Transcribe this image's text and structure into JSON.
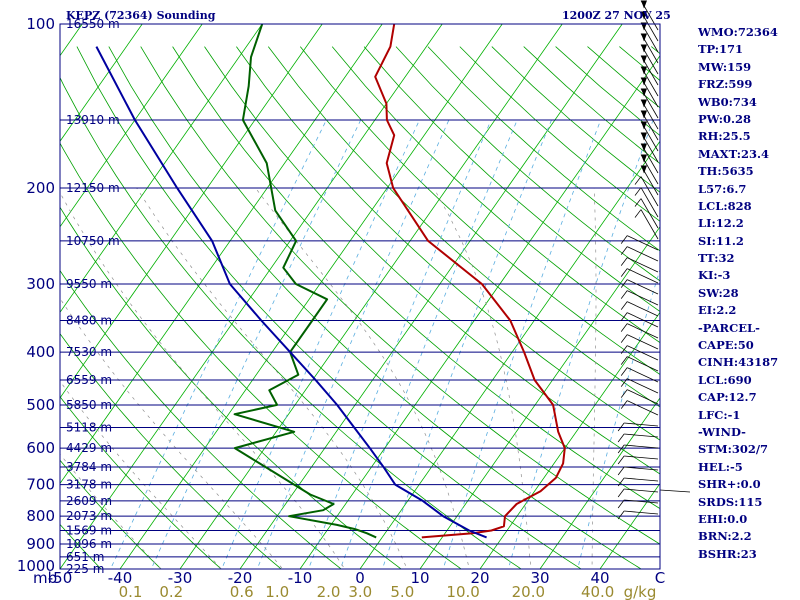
{
  "header": {
    "station": "KEPZ (72364) Sounding",
    "time": "1200Z 27 NOV 25"
  },
  "indices": [
    "WMO:72364",
    "TP:171",
    "MW:159",
    "FRZ:599",
    "WB0:734",
    "PW:0.28",
    "RH:25.5",
    "MAXT:23.4",
    "TH:5635",
    "L57:6.7",
    "LCL:828",
    "LI:12.2",
    "SI:11.2",
    "TT:32",
    "KI:-3",
    "SW:28",
    "EI:2.2",
    "-PARCEL-",
    "CAPE:50",
    "CINH:43187",
    "LCL:690",
    "CAP:12.7",
    "LFC:-1",
    "-WIND-",
    "STM:302/7",
    "HEL:-5",
    "SHR+:0.0",
    "SRDS:115",
    "EHI:0.0",
    "BRN:2.2",
    "BSHR:23"
  ],
  "chart_data": {
    "type": "line",
    "title": "KEPZ (72364) Sounding",
    "x_axis": {
      "unit_label": "C",
      "range": [
        -50,
        50
      ],
      "ticks": [
        "-50",
        "-40",
        "-30",
        "-20",
        "-10",
        "0",
        "10",
        "20",
        "30",
        "40",
        "C"
      ]
    },
    "y_axis": {
      "unit_label": "mb",
      "scale": "log",
      "range": [
        1000,
        100
      ],
      "ticks": [
        "100",
        "200",
        "300",
        "400",
        "500",
        "600",
        "700",
        "800",
        "900",
        "1000"
      ]
    },
    "height_labels": [
      {
        "p": 100,
        "label": "16550 m"
      },
      {
        "p": 150,
        "label": "13910 m"
      },
      {
        "p": 200,
        "label": "12150 m"
      },
      {
        "p": 250,
        "label": "10750 m"
      },
      {
        "p": 300,
        "label": "9550 m"
      },
      {
        "p": 350,
        "label": "8480 m"
      },
      {
        "p": 400,
        "label": "7530 m"
      },
      {
        "p": 450,
        "label": "6559 m"
      },
      {
        "p": 500,
        "label": "5850 m"
      },
      {
        "p": 550,
        "label": "5118 m"
      },
      {
        "p": 600,
        "label": "4429 m"
      },
      {
        "p": 650,
        "label": "3784 m"
      },
      {
        "p": 700,
        "label": "3178 m"
      },
      {
        "p": 750,
        "label": "2609 m"
      },
      {
        "p": 800,
        "label": "2073 m"
      },
      {
        "p": 850,
        "label": "1569 m"
      },
      {
        "p": 900,
        "label": "1096 m"
      },
      {
        "p": 950,
        "label": "651 m"
      },
      {
        "p": 1000,
        "label": "225 m"
      }
    ],
    "mixing_ratio_labels": {
      "unit_label": "g/kg",
      "ticks": [
        "0.1",
        "0.2",
        "0.6",
        "1.0",
        "2.0",
        "3.0",
        "5.0",
        "10.0",
        "20.0",
        "40.0"
      ]
    },
    "series": [
      {
        "color": "#b00000",
        "points": [
          [
            875,
            6.6
          ],
          [
            860,
            14.6
          ],
          [
            850,
            17.4
          ],
          [
            835,
            19.0
          ],
          [
            800,
            18.0
          ],
          [
            760,
            18.5
          ],
          [
            720,
            21.0
          ],
          [
            680,
            22.0
          ],
          [
            640,
            21.5
          ],
          [
            600,
            20.0
          ],
          [
            560,
            17.0
          ],
          [
            500,
            13.0
          ],
          [
            450,
            7.0
          ],
          [
            400,
            2.0
          ],
          [
            350,
            -4.0
          ],
          [
            300,
            -13.0
          ],
          [
            250,
            -27.0
          ],
          [
            200,
            -39.0
          ],
          [
            180,
            -43.0
          ],
          [
            160,
            -45.0
          ],
          [
            150,
            -48.0
          ],
          [
            140,
            -50.0
          ],
          [
            125,
            -55.0
          ],
          [
            110,
            -56.0
          ],
          [
            100,
            -58.0
          ]
        ]
      },
      {
        "color": "#006000",
        "points": [
          [
            875,
            -1.0
          ],
          [
            860,
            -3.0
          ],
          [
            845,
            -5.5
          ],
          [
            830,
            -9.0
          ],
          [
            800,
            -18.0
          ],
          [
            780,
            -13.0
          ],
          [
            760,
            -12.0
          ],
          [
            730,
            -17.0
          ],
          [
            600,
            -35.0
          ],
          [
            560,
            -27.0
          ],
          [
            520,
            -39.0
          ],
          [
            500,
            -33.0
          ],
          [
            470,
            -36.0
          ],
          [
            440,
            -33.0
          ],
          [
            400,
            -37.0
          ],
          [
            350,
            -37.0
          ],
          [
            320,
            -37.0
          ],
          [
            300,
            -44.0
          ],
          [
            280,
            -48.0
          ],
          [
            250,
            -49.0
          ],
          [
            220,
            -56.0
          ],
          [
            180,
            -63.0
          ],
          [
            150,
            -72.0
          ],
          [
            130,
            -75.0
          ],
          [
            115,
            -78.0
          ],
          [
            100,
            -80.0
          ]
        ]
      },
      {
        "color": "#0000a0",
        "points": [
          [
            875,
            17.4
          ],
          [
            850,
            13.7
          ],
          [
            800,
            7.7
          ],
          [
            750,
            2.5
          ],
          [
            700,
            -4.0
          ],
          [
            650,
            -8.0
          ],
          [
            600,
            -12.5
          ],
          [
            550,
            -17.5
          ],
          [
            500,
            -23.0
          ],
          [
            450,
            -29.5
          ],
          [
            400,
            -37.0
          ],
          [
            350,
            -45.5
          ],
          [
            300,
            -55.0
          ],
          [
            250,
            -63.0
          ],
          [
            200,
            -75.0
          ],
          [
            150,
            -90.0
          ],
          [
            110,
            -105.0
          ]
        ]
      }
    ]
  }
}
